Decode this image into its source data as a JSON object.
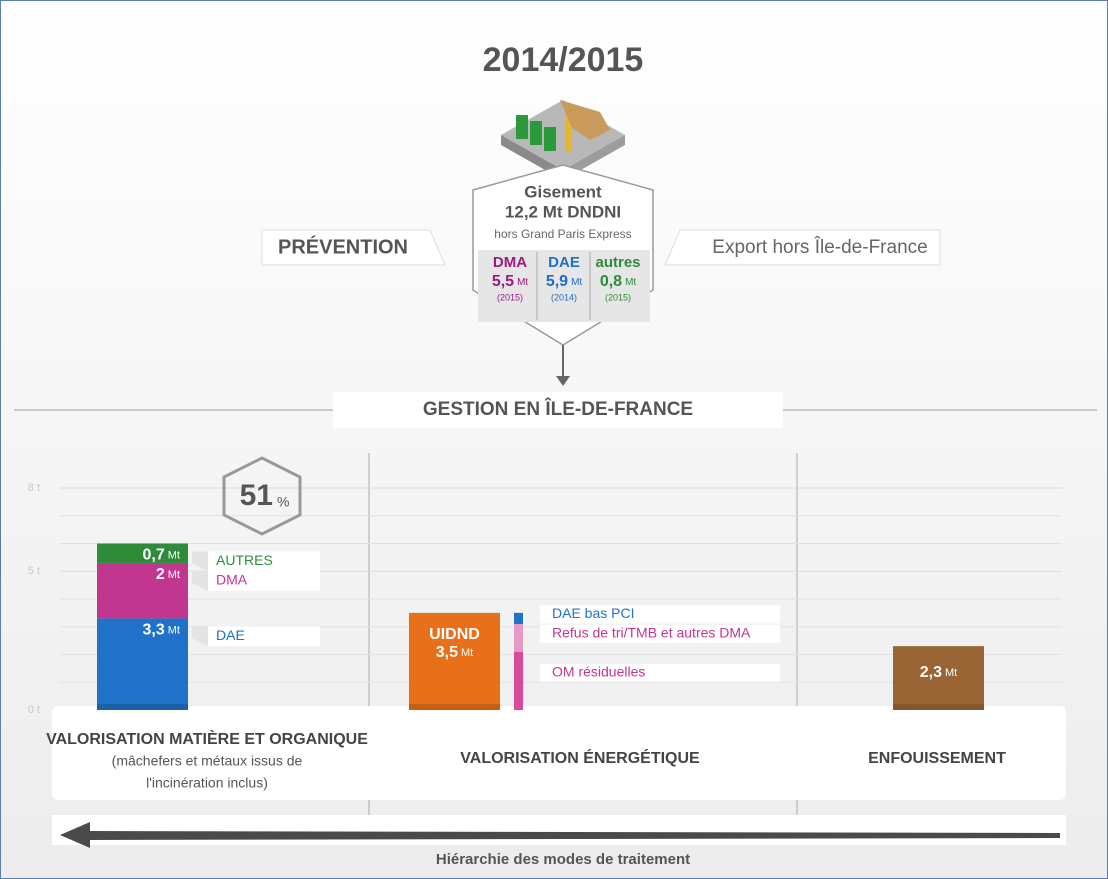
{
  "title": "2014/2015",
  "gisement": {
    "title": "Gisement",
    "total": "12,2 Mt DNDNI",
    "note": "hors Grand Paris Express",
    "parts": [
      {
        "name": "DMA",
        "value": "5,5",
        "unit": "Mt",
        "year": "(2015)",
        "color": "#9b1b7e"
      },
      {
        "name": "DAE",
        "value": "5,9",
        "unit": "Mt",
        "year": "(2014)",
        "color": "#1f6fc4"
      },
      {
        "name": "autres",
        "value": "0,8",
        "unit": "Mt",
        "year": "(2015)",
        "color": "#2e8b3a"
      }
    ]
  },
  "prevention": "PRÉVENTION",
  "export": "Export hors Île-de-France",
  "gestion": "GESTION EN ÎLE-DE-FRANCE",
  "hierarchy": "Hiérarchie des modes de traitement",
  "chart_data": {
    "type": "bar",
    "stacked": true,
    "unit": "Mt",
    "categories": [
      "VALORISATION MATIÈRE ET ORGANIQUE",
      "VALORISATION ÉNERGÉTIQUE",
      "ENFOUISSEMENT"
    ],
    "category_notes": [
      "(mâchefers et métaux issus de",
      "l'incinération inclus)"
    ],
    "share": {
      "value": 51,
      "unit": "%"
    },
    "ylim": [
      0,
      8
    ],
    "yticks": [
      {
        "value": 0,
        "label": "0 t"
      },
      {
        "value": 5,
        "label": "5 t"
      },
      {
        "value": 8,
        "label": "8 t"
      }
    ],
    "yminorticks": [
      1,
      2,
      3,
      4,
      6,
      7
    ],
    "grid": true,
    "series": [
      {
        "name": "DAE",
        "color": "#1f72c8",
        "values": [
          3.3,
          null,
          null
        ],
        "value_labels": [
          "3,3",
          null,
          null
        ]
      },
      {
        "name": "DMA",
        "color": "#c1378f",
        "values": [
          2,
          null,
          null
        ],
        "value_labels": [
          "2",
          null,
          null
        ]
      },
      {
        "name": "AUTRES",
        "color": "#2e8b3a",
        "values": [
          0.7,
          null,
          null
        ],
        "value_labels": [
          "0,7",
          null,
          null
        ]
      },
      {
        "name": "UIDND",
        "color": "#e8701a",
        "values": [
          null,
          3.5,
          null
        ],
        "value_labels": [
          null,
          "3,5",
          null
        ]
      },
      {
        "color": "#9a6535",
        "values": [
          null,
          null,
          2.3
        ],
        "value_labels": [
          null,
          null,
          "2,3"
        ]
      }
    ],
    "breakdown": [
      {
        "name": "OM résiduelles",
        "color": "#d84a9c",
        "value": 2.1
      },
      {
        "name": "Refus de tri/TMB et autres DMA",
        "color": "#e79ac6",
        "value": 1
      },
      {
        "name": "DAE bas PCI",
        "color": "#1f72c8",
        "value": 0.4
      }
    ]
  }
}
